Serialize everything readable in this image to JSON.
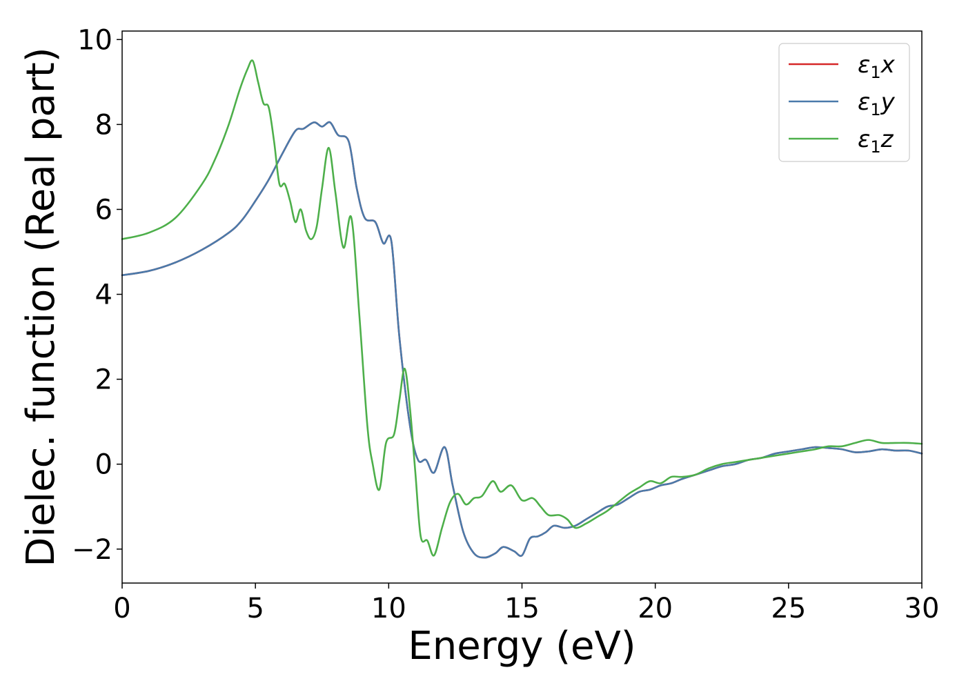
{
  "chart_data": {
    "type": "line",
    "title": "",
    "xlabel": "Energy (eV)",
    "ylabel": "Dielec. function (Real part)",
    "xlim": [
      0,
      30
    ],
    "ylim": [
      -2.8,
      10.2
    ],
    "xticks": [
      0,
      5,
      10,
      15,
      20,
      25,
      30
    ],
    "yticks": [
      -2,
      0,
      2,
      4,
      6,
      8,
      10
    ],
    "xtick_labels": [
      "0",
      "5",
      "10",
      "15",
      "20",
      "25",
      "30"
    ],
    "ytick_labels": [
      "−2",
      "0",
      "2",
      "4",
      "6",
      "8",
      "10"
    ],
    "grid": false,
    "legend_position": "top-right",
    "series": [
      {
        "name": "ε1x",
        "legend_sym": "ε",
        "legend_sub": "1",
        "legend_var": "x",
        "color": "#d62728",
        "x": [
          0,
          1,
          2,
          3,
          4,
          4.5,
          5,
          5.5,
          6,
          6.5,
          6.8,
          7.2,
          7.5,
          7.8,
          8.1,
          8.5,
          8.8,
          9.1,
          9.5,
          9.8,
          10.1,
          10.4,
          10.8,
          11.1,
          11.4,
          11.7,
          12.1,
          12.4,
          12.8,
          13.2,
          13.6,
          14.0,
          14.3,
          14.7,
          15.0,
          15.3,
          15.6,
          15.9,
          16.2,
          16.6,
          17.0,
          17.4,
          17.8,
          18.2,
          18.6,
          19.0,
          19.4,
          19.8,
          20.2,
          20.6,
          21.0,
          21.5,
          22.0,
          22.5,
          23.0,
          23.5,
          24.0,
          24.5,
          25.0,
          25.5,
          26.0,
          26.5,
          27.0,
          27.5,
          28.0,
          28.5,
          29.0,
          29.5,
          30.0
        ],
        "y": [
          4.45,
          4.55,
          4.75,
          5.05,
          5.45,
          5.75,
          6.2,
          6.7,
          7.3,
          7.85,
          7.9,
          8.05,
          7.95,
          8.05,
          7.75,
          7.6,
          6.5,
          5.8,
          5.7,
          5.2,
          5.25,
          3.0,
          0.9,
          0.1,
          0.1,
          -0.2,
          0.4,
          -0.5,
          -1.6,
          -2.1,
          -2.2,
          -2.1,
          -1.95,
          -2.05,
          -2.15,
          -1.75,
          -1.7,
          -1.6,
          -1.45,
          -1.5,
          -1.45,
          -1.3,
          -1.15,
          -1.0,
          -0.95,
          -0.8,
          -0.65,
          -0.6,
          -0.5,
          -0.45,
          -0.35,
          -0.25,
          -0.15,
          -0.05,
          0.0,
          0.1,
          0.15,
          0.25,
          0.3,
          0.35,
          0.4,
          0.38,
          0.35,
          0.28,
          0.3,
          0.35,
          0.32,
          0.32,
          0.25
        ]
      },
      {
        "name": "ε1y",
        "legend_sym": "ε",
        "legend_sub": "1",
        "legend_var": "y",
        "color": "#4a7aaa",
        "x": [
          0,
          1,
          2,
          3,
          4,
          4.5,
          5,
          5.5,
          6,
          6.5,
          6.8,
          7.2,
          7.5,
          7.8,
          8.1,
          8.5,
          8.8,
          9.1,
          9.5,
          9.8,
          10.1,
          10.4,
          10.8,
          11.1,
          11.4,
          11.7,
          12.1,
          12.4,
          12.8,
          13.2,
          13.6,
          14.0,
          14.3,
          14.7,
          15.0,
          15.3,
          15.6,
          15.9,
          16.2,
          16.6,
          17.0,
          17.4,
          17.8,
          18.2,
          18.6,
          19.0,
          19.4,
          19.8,
          20.2,
          20.6,
          21.0,
          21.5,
          22.0,
          22.5,
          23.0,
          23.5,
          24.0,
          24.5,
          25.0,
          25.5,
          26.0,
          26.5,
          27.0,
          27.5,
          28.0,
          28.5,
          29.0,
          29.5,
          30.0
        ],
        "y": [
          4.45,
          4.55,
          4.75,
          5.05,
          5.45,
          5.75,
          6.2,
          6.7,
          7.3,
          7.85,
          7.9,
          8.05,
          7.95,
          8.05,
          7.75,
          7.6,
          6.5,
          5.8,
          5.7,
          5.2,
          5.25,
          3.0,
          0.9,
          0.1,
          0.1,
          -0.2,
          0.4,
          -0.5,
          -1.6,
          -2.1,
          -2.2,
          -2.1,
          -1.95,
          -2.05,
          -2.15,
          -1.75,
          -1.7,
          -1.6,
          -1.45,
          -1.5,
          -1.45,
          -1.3,
          -1.15,
          -1.0,
          -0.95,
          -0.8,
          -0.65,
          -0.6,
          -0.5,
          -0.45,
          -0.35,
          -0.25,
          -0.15,
          -0.05,
          0.0,
          0.1,
          0.15,
          0.25,
          0.3,
          0.35,
          0.4,
          0.38,
          0.35,
          0.28,
          0.3,
          0.35,
          0.32,
          0.32,
          0.25
        ]
      },
      {
        "name": "ε1z",
        "legend_sym": "ε",
        "legend_sub": "1",
        "legend_var": "z",
        "color": "#4daf4a",
        "x": [
          0,
          1,
          2,
          3,
          3.5,
          4,
          4.4,
          4.7,
          4.9,
          5.1,
          5.3,
          5.5,
          5.7,
          5.9,
          6.1,
          6.3,
          6.5,
          6.7,
          6.9,
          7.1,
          7.3,
          7.5,
          7.75,
          8.0,
          8.3,
          8.6,
          8.9,
          9.2,
          9.4,
          9.65,
          9.9,
          10.2,
          10.4,
          10.6,
          10.8,
          11.0,
          11.2,
          11.45,
          11.7,
          12.0,
          12.3,
          12.6,
          12.9,
          13.2,
          13.5,
          13.9,
          14.2,
          14.6,
          15.0,
          15.4,
          15.7,
          16.0,
          16.4,
          16.7,
          17.0,
          17.4,
          17.8,
          18.2,
          18.6,
          19.0,
          19.4,
          19.8,
          20.2,
          20.6,
          21.0,
          21.5,
          22.0,
          22.5,
          23.0,
          23.5,
          24.0,
          24.5,
          25.0,
          25.5,
          26.0,
          26.5,
          27.0,
          27.5,
          28.0,
          28.5,
          29.0,
          29.5,
          30.0
        ],
        "y": [
          5.3,
          5.45,
          5.8,
          6.6,
          7.2,
          8.0,
          8.8,
          9.3,
          9.5,
          9.0,
          8.5,
          8.4,
          7.6,
          6.6,
          6.6,
          6.2,
          5.7,
          6.0,
          5.5,
          5.3,
          5.6,
          6.5,
          7.45,
          6.4,
          5.1,
          5.8,
          3.5,
          0.9,
          0.0,
          -0.6,
          0.5,
          0.7,
          1.5,
          2.25,
          1.3,
          -0.2,
          -1.7,
          -1.8,
          -2.15,
          -1.5,
          -0.9,
          -0.7,
          -0.95,
          -0.8,
          -0.75,
          -0.4,
          -0.65,
          -0.5,
          -0.85,
          -0.8,
          -1.0,
          -1.2,
          -1.2,
          -1.3,
          -1.5,
          -1.4,
          -1.25,
          -1.1,
          -0.9,
          -0.7,
          -0.55,
          -0.4,
          -0.45,
          -0.3,
          -0.3,
          -0.25,
          -0.1,
          0.0,
          0.05,
          0.1,
          0.15,
          0.2,
          0.25,
          0.3,
          0.35,
          0.42,
          0.42,
          0.5,
          0.57,
          0.5,
          0.5,
          0.5,
          0.48
        ]
      }
    ]
  }
}
